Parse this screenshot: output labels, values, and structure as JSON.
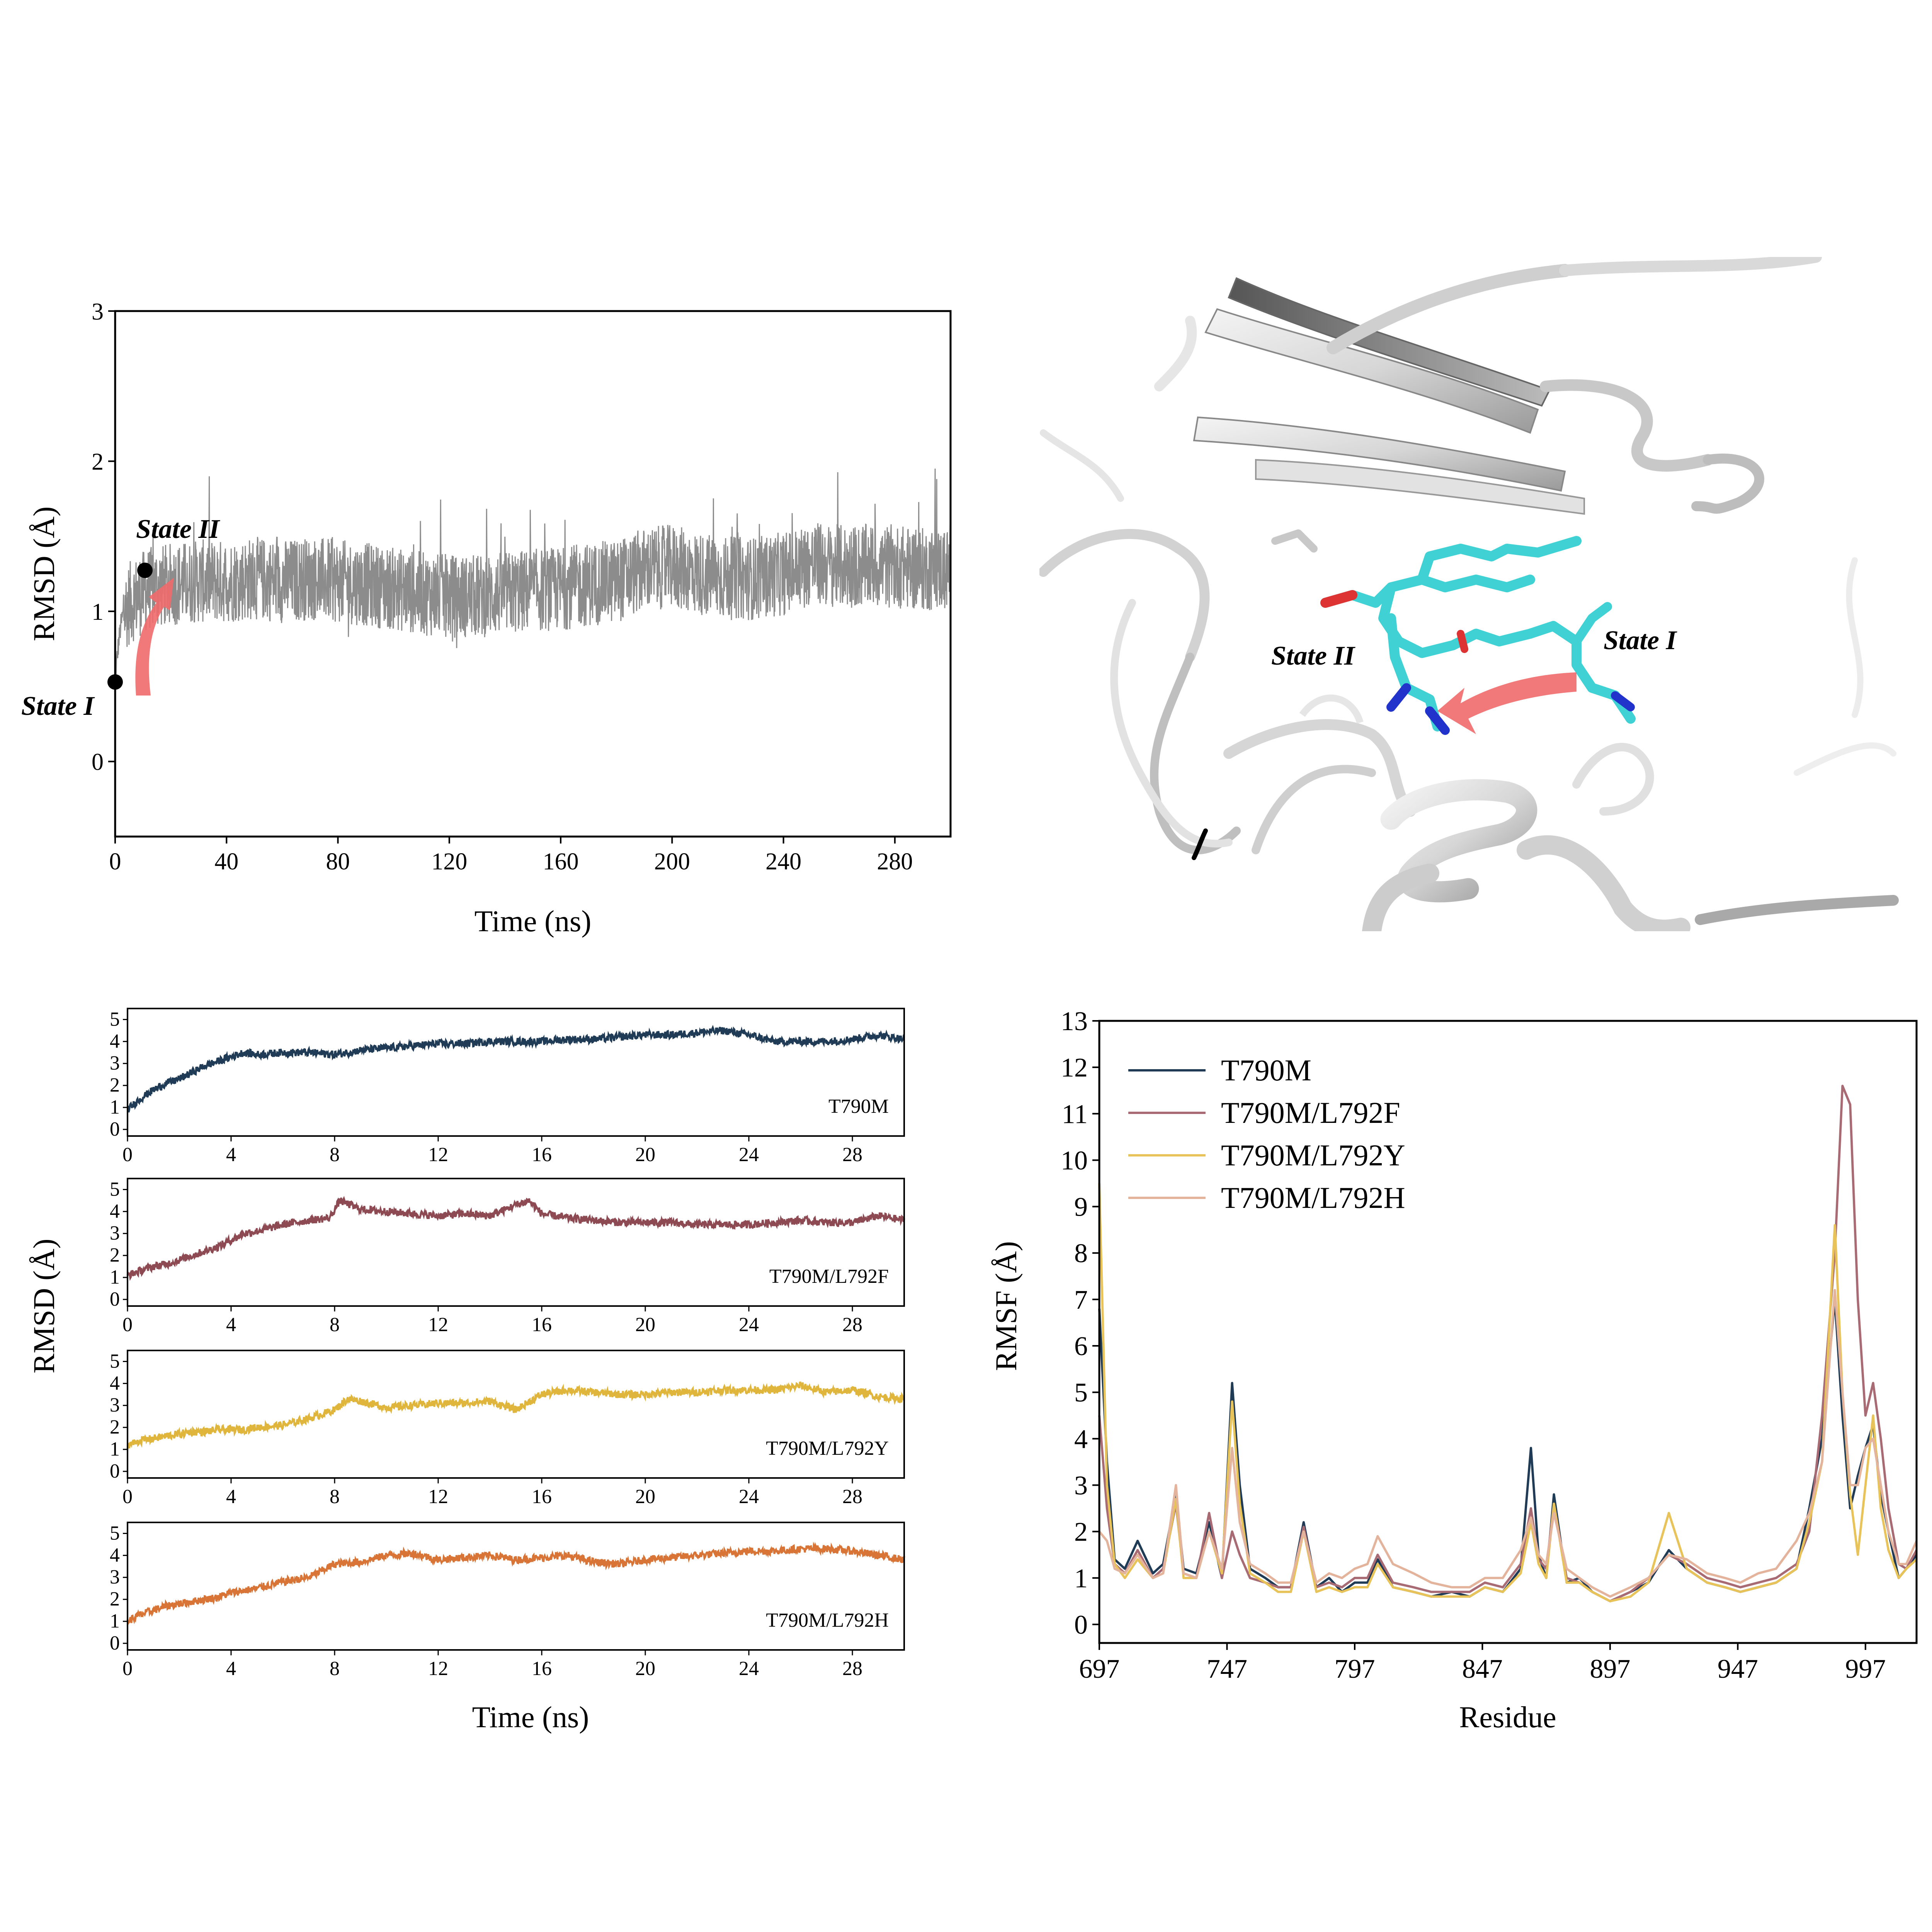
{
  "colors": {
    "panel_a": "#8c8c8c",
    "T790M": "#1f3b56",
    "T790M/L792F": "#8e4a52",
    "T790M/L792Y": "#e0b53c",
    "T790M/L792H": "#d87436",
    "rmsf_T790M": "#1f3b56",
    "rmsf_L792F": "#a86a73",
    "rmsf_L792Y": "#e8c35a",
    "rmsf_L792H": "#e3b39b",
    "arrow": "#f06a6a",
    "ligand": "#3fd1d4"
  },
  "panel_a": {
    "state_labels": {
      "state_i": "State I",
      "state_ii": "State II"
    }
  },
  "panel_b": {
    "state_labels": {
      "state_ii": "State II",
      "state_i": "State I"
    },
    "icons": [
      "protein-ribbon-icon",
      "ligand-stick-icon",
      "transition-arrow-icon"
    ]
  },
  "chart_data": [
    {
      "type": "line",
      "id": "panel-a-rmsd",
      "xlabel": "Time (ns)",
      "ylabel": "RMSD (Å)",
      "xlim": [
        0,
        300
      ],
      "ylim": [
        -0.5,
        3
      ],
      "xticks": [
        0,
        40,
        80,
        120,
        160,
        200,
        240,
        280
      ],
      "yticks": [
        0,
        1,
        2,
        3
      ],
      "series": [
        {
          "x": [
            0,
            1,
            2,
            3,
            5,
            8,
            12,
            20,
            30,
            40,
            50,
            60,
            70,
            80,
            90,
            100,
            110,
            120,
            130,
            140,
            150,
            160,
            170,
            180,
            190,
            200,
            210,
            220,
            230,
            240,
            250,
            260,
            270,
            280,
            290,
            300
          ],
          "y": [
            0.55,
            0.75,
            0.9,
            1.0,
            1.05,
            1.1,
            1.15,
            1.18,
            1.2,
            1.2,
            1.22,
            1.2,
            1.22,
            1.2,
            1.18,
            1.15,
            1.12,
            1.1,
            1.1,
            1.12,
            1.14,
            1.15,
            1.18,
            1.2,
            1.28,
            1.3,
            1.25,
            1.22,
            1.22,
            1.25,
            1.32,
            1.3,
            1.3,
            1.3,
            1.28,
            1.28
          ]
        }
      ],
      "annotations": [
        {
          "text": "State I",
          "x": 0,
          "y": 0.55
        },
        {
          "text": "State II",
          "x": 10,
          "y": 1.27
        }
      ]
    },
    {
      "type": "line",
      "id": "panel-c-rmsd",
      "xlabel": "Time (ns)",
      "ylabel": "RMSD (Å)",
      "xlim": [
        0,
        30
      ],
      "ylim": [
        -0.3,
        5.5
      ],
      "xticks": [
        0,
        4,
        8,
        12,
        16,
        20,
        24,
        28
      ],
      "yticks": [
        0,
        1,
        2,
        3,
        4,
        5
      ],
      "subplots": [
        {
          "name": "T790M",
          "x": [
            0,
            0.5,
            1,
            1.5,
            2,
            2.5,
            3,
            3.5,
            4,
            4.5,
            5,
            6,
            7,
            8,
            9,
            10,
            11,
            12,
            13,
            14,
            15,
            16,
            17,
            18,
            19,
            20,
            21,
            22,
            23,
            24,
            25,
            26,
            27,
            28,
            29,
            30
          ],
          "y": [
            0.9,
            1.4,
            1.8,
            2.1,
            2.3,
            2.6,
            2.9,
            3.1,
            3.3,
            3.5,
            3.4,
            3.5,
            3.5,
            3.4,
            3.6,
            3.7,
            3.8,
            3.9,
            3.9,
            4.0,
            4.0,
            4.0,
            4.1,
            4.1,
            4.2,
            4.3,
            4.3,
            4.4,
            4.5,
            4.3,
            4.0,
            4.0,
            4.0,
            4.1,
            4.3,
            4.1
          ]
        },
        {
          "name": "T790M/L792F",
          "x": [
            0,
            0.5,
            1,
            1.5,
            2,
            2.5,
            3,
            3.5,
            4,
            4.5,
            5,
            6,
            7,
            7.8,
            8.2,
            9,
            10,
            11,
            12,
            13,
            14,
            15,
            15.5,
            16,
            17,
            18,
            19,
            20,
            21,
            22,
            23,
            24,
            25,
            26,
            27,
            28,
            29,
            30
          ],
          "y": [
            1.1,
            1.3,
            1.5,
            1.6,
            1.8,
            2.0,
            2.2,
            2.4,
            2.7,
            3.0,
            3.1,
            3.4,
            3.6,
            3.7,
            4.5,
            4.1,
            4.0,
            3.9,
            3.8,
            3.9,
            3.8,
            4.3,
            4.5,
            3.9,
            3.7,
            3.6,
            3.5,
            3.5,
            3.5,
            3.4,
            3.4,
            3.4,
            3.5,
            3.6,
            3.5,
            3.5,
            3.8,
            3.6
          ]
        },
        {
          "name": "T790M/L792Y",
          "x": [
            0,
            0.5,
            1,
            1.5,
            2,
            2.5,
            3,
            3.5,
            4,
            4.5,
            5,
            6,
            7,
            8,
            8.5,
            9,
            10,
            11,
            12,
            13,
            14,
            15,
            16,
            17,
            18,
            19,
            20,
            21,
            22,
            23,
            24,
            25,
            26,
            27,
            28,
            29,
            30
          ],
          "y": [
            1.2,
            1.4,
            1.5,
            1.6,
            1.7,
            1.8,
            1.8,
            1.9,
            1.9,
            1.9,
            2.0,
            2.1,
            2.4,
            2.8,
            3.3,
            3.2,
            2.9,
            3.0,
            3.1,
            3.1,
            3.2,
            2.8,
            3.5,
            3.7,
            3.6,
            3.5,
            3.5,
            3.6,
            3.6,
            3.7,
            3.7,
            3.7,
            3.9,
            3.6,
            3.7,
            3.4,
            3.3
          ]
        },
        {
          "name": "T790M/L792H",
          "x": [
            0,
            0.5,
            1,
            1.5,
            2,
            2.5,
            3,
            3.5,
            4,
            4.5,
            5,
            6,
            7,
            8,
            9,
            10,
            11,
            12,
            13,
            14,
            15,
            16,
            17,
            18,
            19,
            20,
            21,
            22,
            23,
            24,
            25,
            26,
            27,
            28,
            29,
            30
          ],
          "y": [
            1.0,
            1.3,
            1.5,
            1.7,
            1.8,
            1.9,
            2.0,
            2.1,
            2.3,
            2.4,
            2.5,
            2.8,
            3.0,
            3.6,
            3.7,
            4.0,
            4.1,
            3.8,
            3.9,
            4.0,
            3.8,
            3.9,
            4.0,
            3.7,
            3.6,
            3.8,
            3.9,
            4.0,
            4.1,
            4.2,
            4.2,
            4.3,
            4.3,
            4.2,
            4.0,
            3.8
          ]
        }
      ]
    },
    {
      "type": "line",
      "id": "panel-d-rmsf",
      "xlabel": "Residue",
      "ylabel": "RMSF (Å)",
      "xlim": [
        697,
        1017
      ],
      "ylim": [
        -0.4,
        13
      ],
      "xticks": [
        697,
        747,
        797,
        847,
        897,
        947,
        997
      ],
      "yticks": [
        0,
        1,
        2,
        3,
        4,
        5,
        6,
        7,
        8,
        9,
        10,
        11,
        12,
        13
      ],
      "legend": "top-left",
      "series": [
        {
          "name": "T790M",
          "x": [
            697,
            700,
            703,
            707,
            712,
            718,
            722,
            727,
            730,
            735,
            740,
            745,
            749,
            752,
            756,
            762,
            767,
            772,
            777,
            782,
            787,
            792,
            797,
            802,
            806,
            812,
            820,
            827,
            835,
            842,
            848,
            855,
            862,
            866,
            869,
            872,
            875,
            880,
            885,
            890,
            897,
            905,
            912,
            920,
            927,
            935,
            942,
            948,
            955,
            962,
            970,
            975,
            980,
            985,
            988,
            991,
            994,
            997,
            1000,
            1003,
            1006,
            1010,
            1013,
            1017
          ],
          "y": [
            6.8,
            3.5,
            1.4,
            1.2,
            1.8,
            1.1,
            1.3,
            2.8,
            1.2,
            1.1,
            2.2,
            1.0,
            5.2,
            3.0,
            1.2,
            1.0,
            0.8,
            0.8,
            2.2,
            0.8,
            1.0,
            0.7,
            0.9,
            0.9,
            1.4,
            0.8,
            0.7,
            0.6,
            0.7,
            0.6,
            0.8,
            0.7,
            1.2,
            3.8,
            1.5,
            1.0,
            2.8,
            0.9,
            1.0,
            0.7,
            0.5,
            0.7,
            0.9,
            1.6,
            1.2,
            0.9,
            0.8,
            0.7,
            0.8,
            0.9,
            1.2,
            2.5,
            4.0,
            7.0,
            4.5,
            2.5,
            3.2,
            3.8,
            4.3,
            2.8,
            2.0,
            1.0,
            1.2,
            1.5
          ]
        },
        {
          "name": "T790M/L792F",
          "x": [
            697,
            700,
            703,
            707,
            712,
            718,
            722,
            727,
            730,
            735,
            740,
            745,
            749,
            752,
            756,
            762,
            767,
            772,
            777,
            782,
            787,
            792,
            797,
            802,
            806,
            812,
            820,
            827,
            835,
            842,
            848,
            855,
            862,
            866,
            869,
            872,
            875,
            880,
            885,
            890,
            897,
            905,
            912,
            920,
            927,
            935,
            942,
            948,
            955,
            962,
            970,
            975,
            980,
            985,
            988,
            991,
            994,
            997,
            1000,
            1003,
            1006,
            1010,
            1013,
            1017
          ],
          "y": [
            4.5,
            2.5,
            1.3,
            1.1,
            1.6,
            1.0,
            1.2,
            2.6,
            1.1,
            1.0,
            2.4,
            1.0,
            2.0,
            1.5,
            1.0,
            0.9,
            0.8,
            0.8,
            2.1,
            0.8,
            0.9,
            0.8,
            1.0,
            1.0,
            1.5,
            0.9,
            0.8,
            0.7,
            0.7,
            0.7,
            0.9,
            0.8,
            1.3,
            2.5,
            1.4,
            1.2,
            2.6,
            1.0,
            0.9,
            0.7,
            0.5,
            0.7,
            1.0,
            1.5,
            1.3,
            1.0,
            0.9,
            0.8,
            0.9,
            1.0,
            1.3,
            2.0,
            4.5,
            8.0,
            11.6,
            11.2,
            7.0,
            4.5,
            5.2,
            4.0,
            2.5,
            1.3,
            1.2,
            1.6
          ]
        },
        {
          "name": "T790M/L792Y",
          "x": [
            697,
            700,
            703,
            707,
            712,
            718,
            722,
            727,
            730,
            735,
            740,
            745,
            749,
            752,
            756,
            762,
            767,
            772,
            777,
            782,
            787,
            792,
            797,
            802,
            806,
            812,
            820,
            827,
            835,
            842,
            848,
            855,
            862,
            866,
            869,
            872,
            875,
            880,
            885,
            890,
            897,
            905,
            912,
            920,
            927,
            935,
            942,
            948,
            955,
            962,
            970,
            975,
            980,
            985,
            988,
            991,
            994,
            997,
            1000,
            1003,
            1006,
            1010,
            1013,
            1017
          ],
          "y": [
            9.5,
            3.0,
            1.3,
            1.0,
            1.4,
            1.0,
            1.1,
            2.7,
            1.0,
            1.0,
            2.0,
            1.1,
            4.8,
            2.6,
            1.1,
            0.9,
            0.7,
            0.7,
            2.0,
            0.7,
            0.8,
            0.7,
            0.8,
            0.8,
            1.3,
            0.8,
            0.7,
            0.6,
            0.6,
            0.6,
            0.8,
            0.7,
            1.1,
            2.2,
            1.3,
            1.0,
            2.6,
            0.9,
            0.9,
            0.7,
            0.5,
            0.6,
            0.9,
            2.4,
            1.2,
            0.9,
            0.8,
            0.7,
            0.8,
            0.9,
            1.2,
            2.2,
            3.5,
            8.6,
            5.0,
            2.8,
            1.5,
            3.0,
            4.5,
            2.5,
            1.6,
            1.0,
            1.2,
            1.4
          ]
        },
        {
          "name": "T790M/L792H",
          "x": [
            697,
            700,
            703,
            707,
            712,
            718,
            722,
            727,
            730,
            735,
            740,
            745,
            749,
            752,
            756,
            762,
            767,
            772,
            777,
            782,
            787,
            792,
            797,
            802,
            806,
            812,
            820,
            827,
            835,
            842,
            848,
            855,
            862,
            866,
            869,
            872,
            875,
            880,
            885,
            890,
            897,
            905,
            912,
            920,
            927,
            935,
            942,
            948,
            955,
            962,
            970,
            975,
            980,
            985,
            988,
            991,
            994,
            997,
            1000,
            1003,
            1006,
            1010,
            1013,
            1017
          ],
          "y": [
            2.0,
            1.8,
            1.2,
            1.1,
            1.5,
            1.0,
            1.1,
            3.0,
            1.1,
            1.0,
            2.0,
            1.2,
            3.8,
            2.2,
            1.3,
            1.1,
            0.9,
            0.9,
            2.0,
            0.9,
            1.1,
            1.0,
            1.2,
            1.3,
            1.9,
            1.3,
            1.1,
            0.9,
            0.8,
            0.8,
            1.0,
            1.0,
            1.6,
            2.3,
            1.5,
            1.3,
            2.4,
            1.2,
            1.0,
            0.8,
            0.6,
            0.8,
            1.0,
            1.5,
            1.4,
            1.1,
            1.0,
            0.9,
            1.1,
            1.2,
            1.8,
            2.4,
            3.5,
            7.2,
            5.0,
            3.0,
            3.0,
            3.8,
            4.0,
            3.0,
            2.0,
            1.3,
            1.3,
            1.8
          ]
        }
      ]
    }
  ]
}
